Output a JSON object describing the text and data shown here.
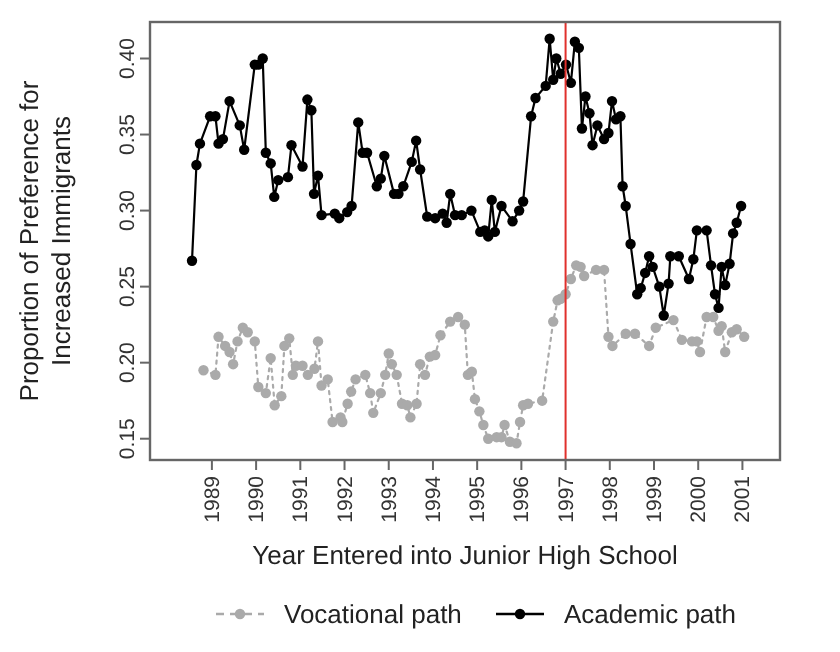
{
  "chart_data": {
    "type": "line",
    "xlabel": "Year Entered into Junior High School",
    "ylabel": "Proportion of Preference for Increased Immigrants",
    "xlim": [
      1987.6,
      2001.85
    ],
    "xticks": [
      1989,
      1990,
      1991,
      1992,
      1993,
      1994,
      1995,
      1996,
      1997,
      1998,
      1999,
      2000,
      2001
    ],
    "ylim": [
      0.136,
      0.424
    ],
    "yticks": [
      {
        "value": 0.15,
        "label": "0.15"
      },
      {
        "value": 0.2,
        "label": "0.20"
      },
      {
        "value": 0.25,
        "label": "0.25"
      },
      {
        "value": 0.3,
        "label": "0.30"
      },
      {
        "value": 0.35,
        "label": "0.35"
      },
      {
        "value": 0.4,
        "label": "0.40"
      }
    ],
    "grid": false,
    "legend": "bottom",
    "marker": "circle",
    "ref_lines": [
      {
        "axis": "x",
        "value": 1997,
        "color": "#e0302c"
      }
    ],
    "series": [
      {
        "name": "Vocational path",
        "color": "#aaaaaa",
        "line_style": "dotted",
        "x": [
          1988.81,
          1989.08,
          1989.15,
          1989.3,
          1989.4,
          1989.48,
          1989.58,
          1989.7,
          1989.81,
          1989.97,
          1990.05,
          1990.22,
          1990.33,
          1990.42,
          1990.57,
          1990.64,
          1990.75,
          1990.83,
          1990.9,
          1991.05,
          1991.17,
          1991.32,
          1991.4,
          1991.48,
          1991.62,
          1991.73,
          1991.91,
          1991.95,
          1992.07,
          1992.15,
          1992.25,
          1992.47,
          1992.58,
          1992.65,
          1992.82,
          1992.92,
          1993.0,
          1993.07,
          1993.18,
          1993.3,
          1993.42,
          1993.49,
          1993.63,
          1993.71,
          1993.82,
          1993.93,
          1994.05,
          1994.17,
          1994.39,
          1994.57,
          1994.72,
          1994.79,
          1994.88,
          1994.95,
          1995.05,
          1995.14,
          1995.25,
          1995.44,
          1995.55,
          1995.62,
          1995.74,
          1995.89,
          1995.97,
          1996.04,
          1996.15,
          1996.47,
          1996.72,
          1996.82,
          1996.89,
          1997.0,
          1997.12,
          1997.24,
          1997.34,
          1997.42,
          1997.69,
          1997.87,
          1997.97,
          1998.06,
          1998.36,
          1998.57,
          1998.89,
          1999.04,
          1999.44,
          1999.63,
          1999.86,
          1999.97,
          2000.04,
          2000.19,
          2000.34,
          2000.46,
          2000.53,
          2000.61,
          2000.76,
          2000.87,
          2001.04
        ],
        "values": [
          0.195,
          0.192,
          0.217,
          0.211,
          0.207,
          0.199,
          0.214,
          0.223,
          0.22,
          0.214,
          0.184,
          0.18,
          0.203,
          0.172,
          0.178,
          0.211,
          0.216,
          0.192,
          0.198,
          0.198,
          0.192,
          0.196,
          0.214,
          0.185,
          0.189,
          0.161,
          0.164,
          0.161,
          0.173,
          0.181,
          0.189,
          0.192,
          0.18,
          0.167,
          0.18,
          0.192,
          0.206,
          0.199,
          0.192,
          0.173,
          0.172,
          0.164,
          0.173,
          0.199,
          0.192,
          0.204,
          0.205,
          0.218,
          0.227,
          0.23,
          0.225,
          0.192,
          0.194,
          0.176,
          0.168,
          0.159,
          0.15,
          0.151,
          0.151,
          0.159,
          0.148,
          0.147,
          0.161,
          0.172,
          0.173,
          0.175,
          0.227,
          0.241,
          0.242,
          0.245,
          0.255,
          0.264,
          0.263,
          0.257,
          0.261,
          0.261,
          0.217,
          0.211,
          0.219,
          0.219,
          0.211,
          0.223,
          0.228,
          0.215,
          0.214,
          0.214,
          0.207,
          0.23,
          0.23,
          0.221,
          0.224,
          0.207,
          0.22,
          0.222,
          0.217
        ]
      },
      {
        "name": "Academic path",
        "color": "#000000",
        "line_style": "solid",
        "x": [
          1988.55,
          1988.65,
          1988.73,
          1988.96,
          1989.08,
          1989.15,
          1989.25,
          1989.4,
          1989.63,
          1989.73,
          1989.97,
          1990.05,
          1990.15,
          1990.22,
          1990.33,
          1990.41,
          1990.5,
          1990.72,
          1990.8,
          1991.05,
          1991.16,
          1991.25,
          1991.31,
          1991.4,
          1991.48,
          1991.78,
          1991.88,
          1992.06,
          1992.16,
          1992.31,
          1992.41,
          1992.51,
          1992.73,
          1992.82,
          1992.9,
          1993.12,
          1993.22,
          1993.33,
          1993.52,
          1993.62,
          1993.71,
          1993.87,
          1994.05,
          1994.22,
          1994.31,
          1994.39,
          1994.5,
          1994.65,
          1994.87,
          1995.07,
          1995.17,
          1995.25,
          1995.33,
          1995.4,
          1995.55,
          1995.8,
          1995.95,
          1996.04,
          1996.22,
          1996.32,
          1996.55,
          1996.64,
          1996.72,
          1996.79,
          1996.89,
          1997.01,
          1997.12,
          1997.21,
          1997.3,
          1997.37,
          1997.45,
          1997.54,
          1997.61,
          1997.72,
          1997.87,
          1997.97,
          1998.05,
          1998.14,
          1998.24,
          1998.29,
          1998.36,
          1998.47,
          1998.62,
          1998.7,
          1998.8,
          1998.89,
          1998.97,
          1999.12,
          1999.22,
          1999.33,
          1999.37,
          1999.56,
          1999.79,
          1999.89,
          1999.97,
          2000.19,
          2000.29,
          2000.38,
          2000.46,
          2000.53,
          2000.61,
          2000.71,
          2000.79,
          2000.87,
          2000.97
        ],
        "values": [
          0.267,
          0.33,
          0.344,
          0.362,
          0.362,
          0.344,
          0.347,
          0.372,
          0.356,
          0.34,
          0.396,
          0.396,
          0.4,
          0.338,
          0.331,
          0.309,
          0.32,
          0.322,
          0.343,
          0.329,
          0.373,
          0.366,
          0.311,
          0.323,
          0.297,
          0.298,
          0.295,
          0.299,
          0.303,
          0.358,
          0.338,
          0.338,
          0.316,
          0.321,
          0.336,
          0.311,
          0.311,
          0.316,
          0.332,
          0.346,
          0.327,
          0.296,
          0.295,
          0.298,
          0.292,
          0.311,
          0.297,
          0.297,
          0.3,
          0.286,
          0.287,
          0.283,
          0.307,
          0.286,
          0.303,
          0.293,
          0.3,
          0.306,
          0.362,
          0.374,
          0.382,
          0.413,
          0.386,
          0.4,
          0.39,
          0.396,
          0.384,
          0.411,
          0.407,
          0.354,
          0.375,
          0.364,
          0.343,
          0.356,
          0.347,
          0.351,
          0.372,
          0.36,
          0.362,
          0.316,
          0.303,
          0.278,
          0.245,
          0.249,
          0.259,
          0.27,
          0.263,
          0.25,
          0.231,
          0.252,
          0.27,
          0.27,
          0.255,
          0.268,
          0.287,
          0.287,
          0.264,
          0.245,
          0.236,
          0.263,
          0.251,
          0.265,
          0.285,
          0.292,
          0.303
        ]
      }
    ]
  }
}
